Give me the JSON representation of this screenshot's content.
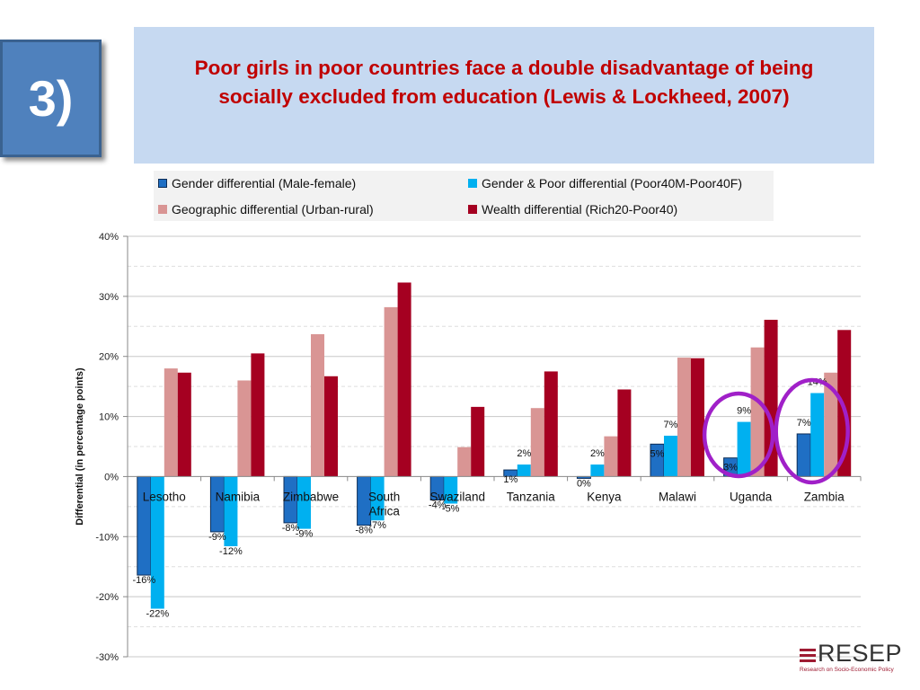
{
  "slide": {
    "number": "3)",
    "title_line1": "Poor girls in poor countries face a double disadvantage of being",
    "title_line2": "socially excluded from education (Lewis & Lockheed, 2007)"
  },
  "logo": {
    "text": "RESEP",
    "tagline": "Research on Socio-Economic Policy"
  },
  "colors": {
    "gender": "#1f6fc4",
    "gender_poor": "#00b0f0",
    "geographic": "#d99594",
    "wealth": "#a50021",
    "highlight_circle": "#a020c8",
    "title": "#c00000"
  },
  "chart_data": {
    "type": "bar",
    "title": "",
    "xlabel": "",
    "ylabel": "Differential (in percentage points)",
    "ylim": [
      -30,
      40
    ],
    "yticks": [
      -30,
      -20,
      -10,
      0,
      10,
      20,
      30,
      40
    ],
    "ytick_labels": [
      "-30%",
      "-20%",
      "-10%",
      "0%",
      "10%",
      "20%",
      "30%",
      "40%"
    ],
    "grid": true,
    "legend_position": "top",
    "categories": [
      "Lesotho",
      "Namibia",
      "Zimbabwe",
      "South Africa",
      "Swaziland",
      "Tanzania",
      "Kenya",
      "Malawi",
      "Uganda",
      "Zambia"
    ],
    "category_lines": [
      [
        "Lesotho"
      ],
      [
        "Namibia"
      ],
      [
        "Zimbabwe"
      ],
      [
        "South",
        "Africa"
      ],
      [
        "Swaziland"
      ],
      [
        "Tanzania"
      ],
      [
        "Kenya"
      ],
      [
        "Malawi"
      ],
      [
        "Uganda"
      ],
      [
        "Zambia"
      ]
    ],
    "series": [
      {
        "name": "Gender differential (Male-female)",
        "values": [
          -16.4,
          -9.2,
          -7.7,
          -8.1,
          -3.9,
          1.1,
          -0.3,
          5.4,
          3.1,
          7.1
        ],
        "labels": [
          "-16%",
          "-9%",
          "-8%",
          "-8%",
          "-4%",
          "1%",
          "0%",
          "5%",
          "3%",
          "7%"
        ]
      },
      {
        "name": "Gender & Poor differential (Poor40M-Poor40F)",
        "values": [
          -22,
          -11.6,
          -8.7,
          -7.3,
          -4.5,
          2,
          2,
          6.8,
          9.1,
          13.9
        ],
        "labels": [
          "-22%",
          "-12%",
          "-9%",
          "-7%",
          "-5%",
          "2%",
          "2%",
          "7%",
          "9%",
          "14%"
        ]
      },
      {
        "name": "Geographic differential (Urban-rural)",
        "values": [
          18,
          16,
          23.7,
          28.2,
          4.9,
          11.4,
          6.7,
          19.8,
          21.5,
          17.3
        ],
        "labels": []
      },
      {
        "name": "Wealth differential (Rich20-Poor40)",
        "values": [
          17.3,
          20.5,
          16.7,
          32.3,
          11.6,
          17.5,
          14.5,
          19.7,
          26.1,
          24.4
        ],
        "labels": []
      }
    ],
    "highlighted_categories": [
      "Uganda",
      "Zambia"
    ]
  }
}
